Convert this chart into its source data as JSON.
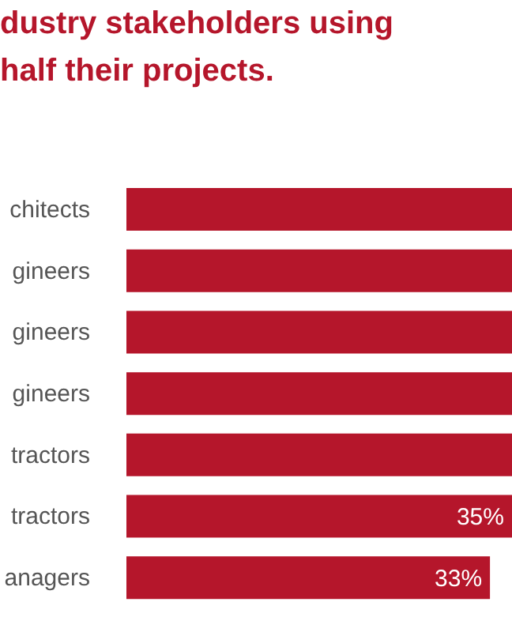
{
  "chart_data": {
    "type": "bar",
    "orientation": "horizontal",
    "title": "dustry stakeholders using\nhalf their projects.",
    "categories": [
      "chitects",
      "gineers",
      "gineers",
      "gineers",
      "tractors",
      "tractors",
      "anagers"
    ],
    "values": [
      35,
      35,
      35,
      35,
      35,
      35,
      33
    ],
    "value_labels": [
      null,
      null,
      null,
      null,
      null,
      "35%",
      "33%"
    ],
    "color": "#b5162b",
    "xlim": [
      0,
      35
    ],
    "tick_labels": "y"
  }
}
